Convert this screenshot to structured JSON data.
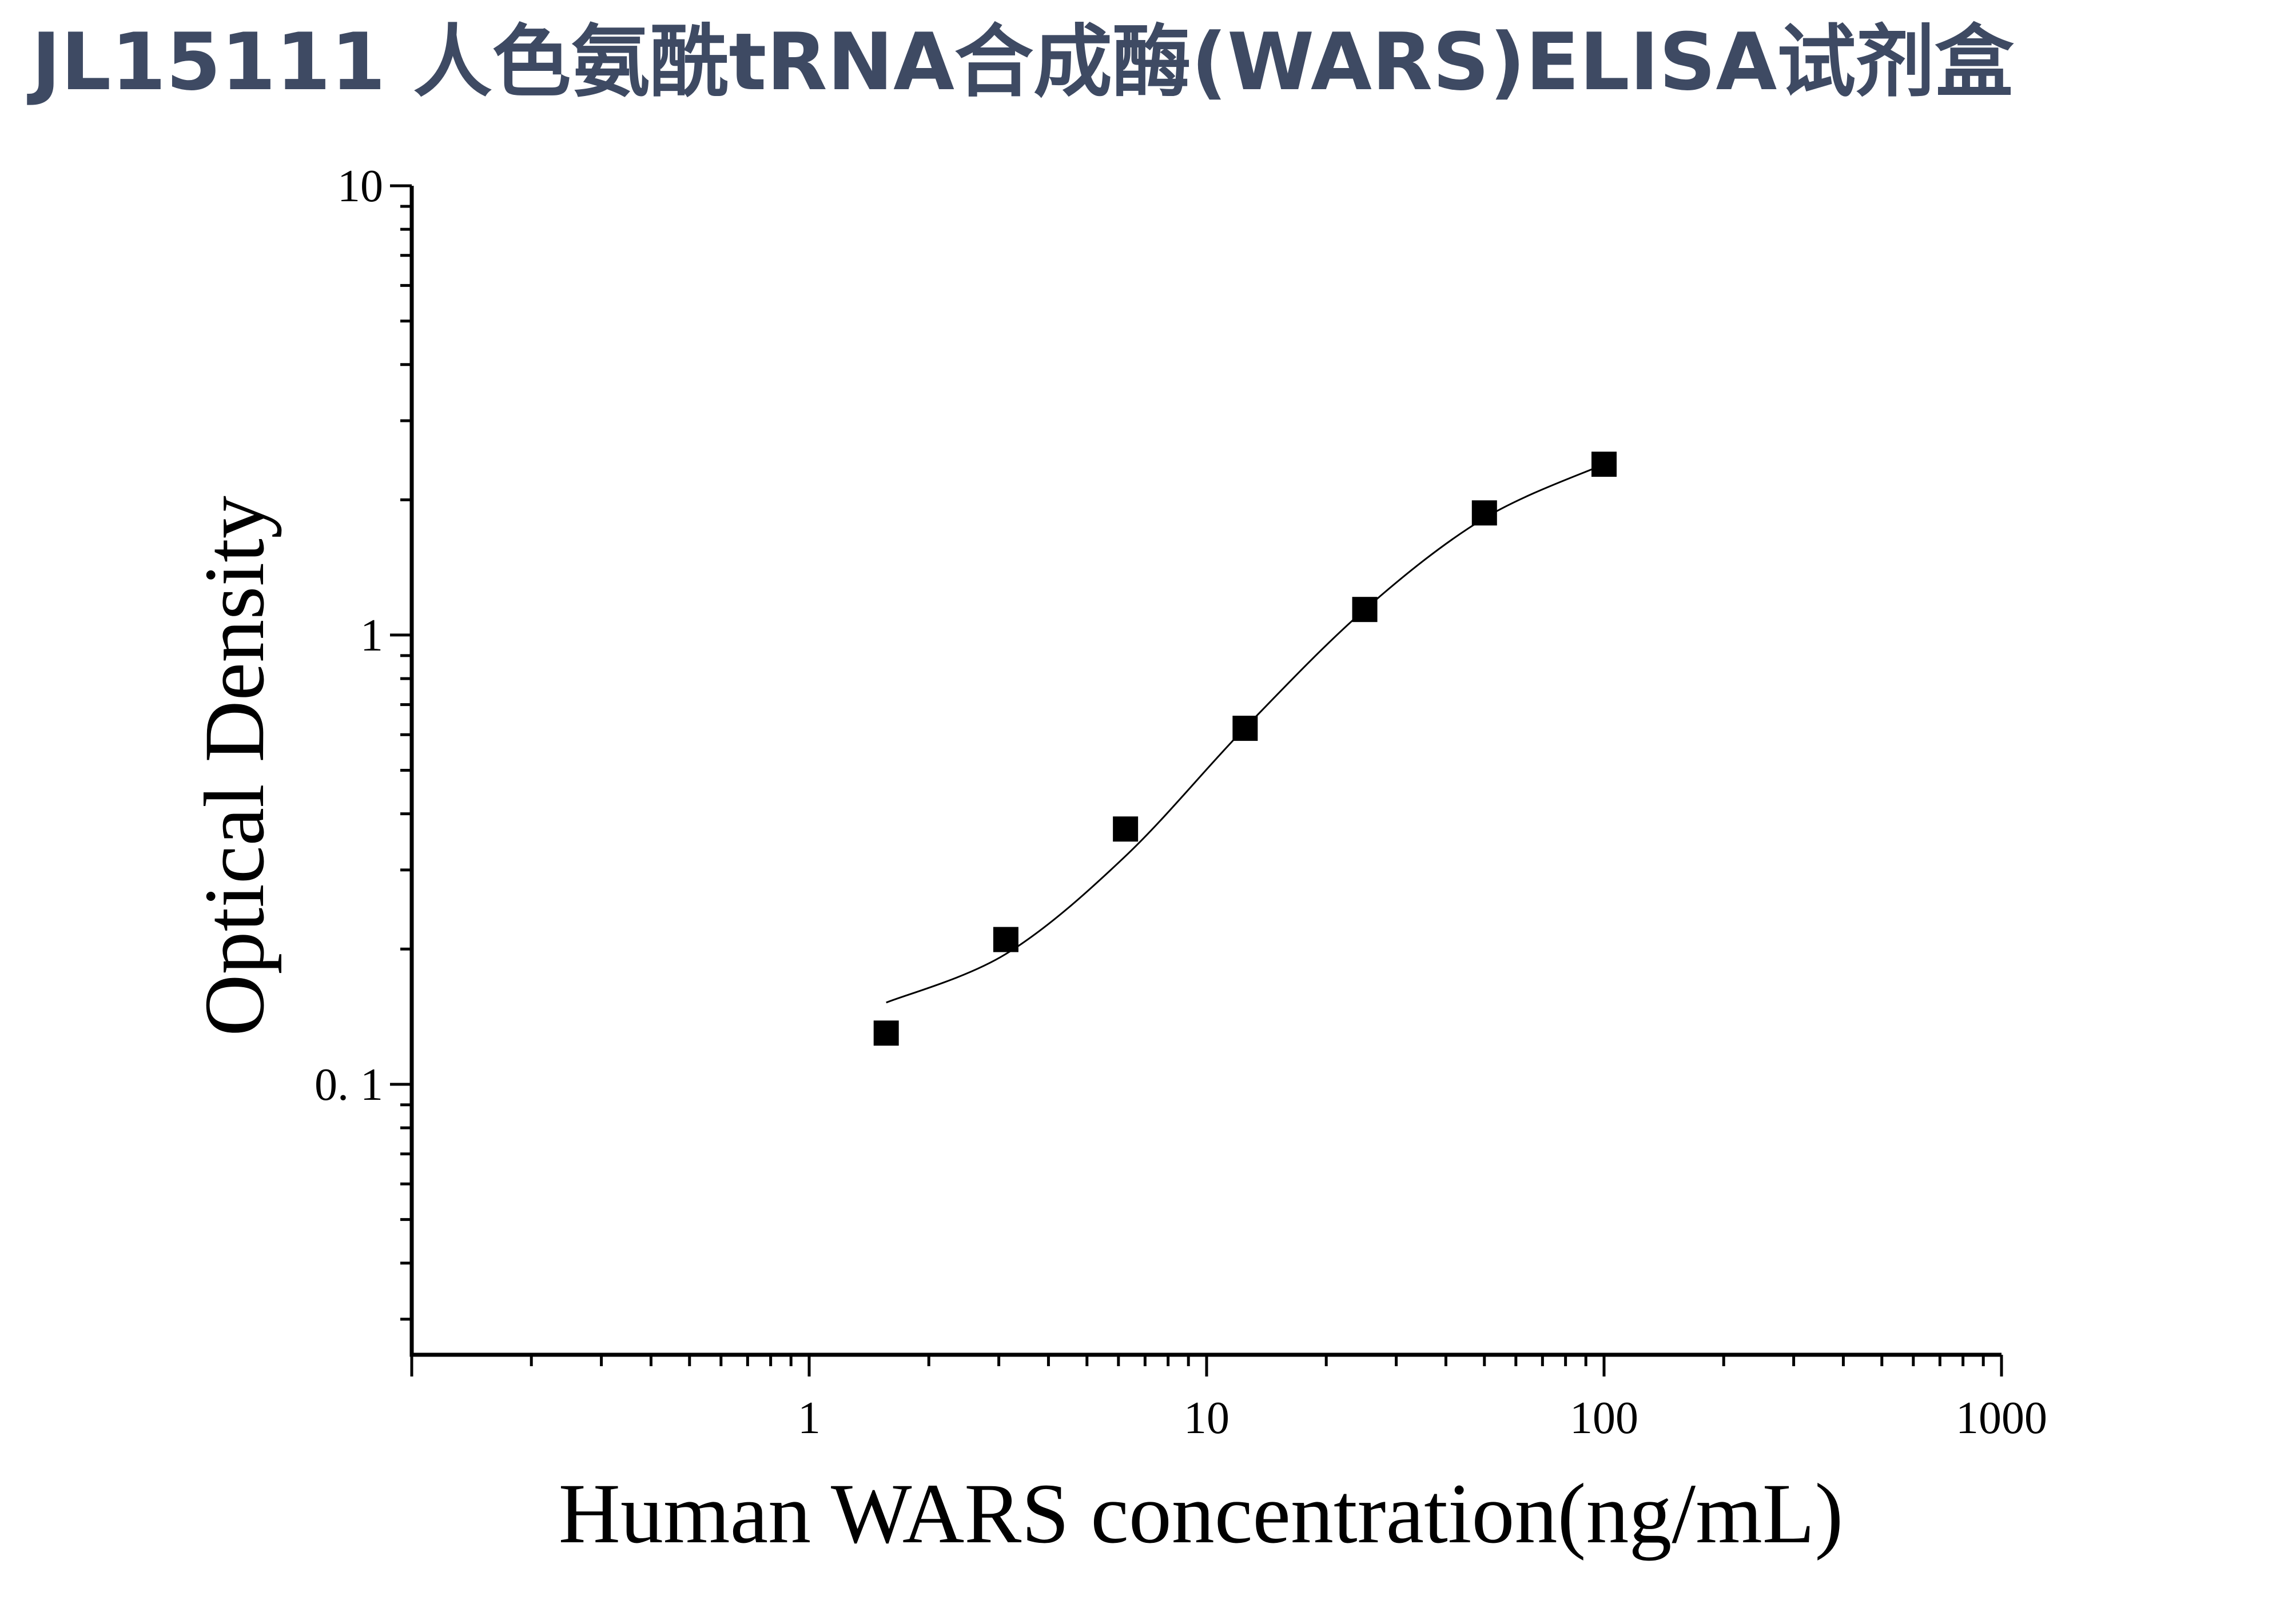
{
  "page": {
    "title": "JL15111 人色氨酰tRNA合成酶(WARS)ELISA试剂盒"
  },
  "colors": {
    "title": "#3e4a63",
    "axis": "#000000",
    "marker": "#000000",
    "curve": "#000000",
    "background": "#ffffff"
  },
  "chart_data": {
    "type": "scatter",
    "title": "",
    "xlabel": "Human WARS concentration(ng/mL)",
    "ylabel": "Optical Density",
    "x_scale": "log",
    "y_scale": "log",
    "xlim": [
      0.1,
      1000
    ],
    "ylim": [
      0.025,
      10
    ],
    "x_tick_labels": [
      "1",
      "10",
      "100",
      "1000"
    ],
    "y_tick_labels": [
      "10",
      "1",
      "0. 1"
    ],
    "grid": false,
    "legend": "none",
    "series": [
      {
        "marker": "square",
        "x": [
          1.5625,
          3.125,
          6.25,
          12.5,
          25,
          50,
          100
        ],
        "y": [
          0.13,
          0.21,
          0.37,
          0.62,
          1.14,
          1.87,
          2.4
        ]
      }
    ],
    "fit_curve": {
      "type": "4PL",
      "x_range": [
        1.5625,
        100
      ],
      "y": [
        0.152,
        0.195,
        0.322,
        0.622,
        1.14,
        1.82,
        2.4
      ]
    }
  }
}
